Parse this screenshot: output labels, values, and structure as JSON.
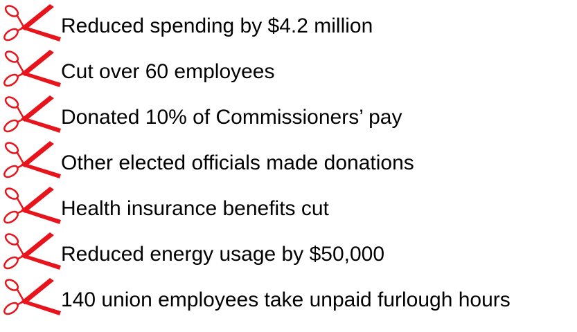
{
  "items": [
    "Reduced spending by $4.2 million",
    "Cut over 60 employees",
    "Donated 10% of Commissioners’ pay",
    "Other elected officials made donations",
    "Health insurance benefits cut",
    "Reduced energy usage by $50,000",
    "140 union employees take unpaid furlough hours"
  ]
}
